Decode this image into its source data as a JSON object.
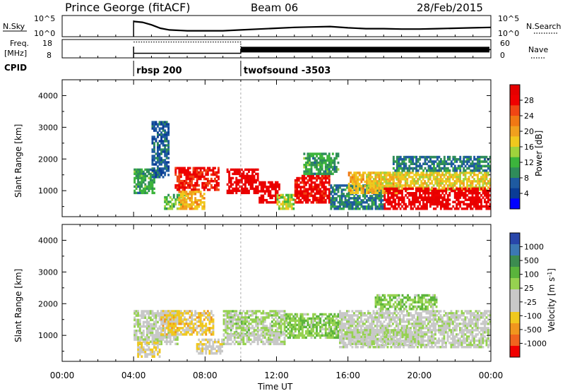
{
  "header": {
    "station": "Prince George (fitACF)",
    "beam": "Beam 06",
    "date": "28/Feb/2015"
  },
  "summary_panels": {
    "nsky_label": "N.Sky",
    "nsearch_label": "N.Search",
    "nsky_ticks": [
      "10^5",
      "10^0"
    ],
    "nsearch_ticks": [
      "10^5",
      "10^0"
    ],
    "freq_label_top": "Freq.",
    "freq_label_bottom": "[MHz]",
    "freq_ticks": [
      "18",
      "8"
    ],
    "nave_label": "Nave",
    "nave_ticks": [
      "60",
      "0"
    ],
    "cpid_label": "CPID",
    "cpid_segments": [
      {
        "start_hour": 4.0,
        "label": "rbsp 200"
      },
      {
        "start_hour": 10.0,
        "label": "twofsound -3503"
      }
    ]
  },
  "colors": {
    "power_scale": [
      "#0000ff",
      "#0a3c96",
      "#1e5aa0",
      "#2f8c5a",
      "#3cb43c",
      "#a0d23c",
      "#f0c81e",
      "#f0a01e",
      "#f07814",
      "#f04614",
      "#f00000",
      "#e60000"
    ],
    "velocity_scale": [
      "#2846aa",
      "#3c78b4",
      "#3c8c50",
      "#5ab43c",
      "#96d250",
      "#c8c8c8",
      "#c8c8c8",
      "#f0c81e",
      "#f0961e",
      "#f0641e",
      "#f00000"
    ]
  },
  "chart_data": [
    {
      "type": "heatmap",
      "title": "",
      "ylabel": "Slant Range [km]",
      "xlabel": "",
      "x_ticks": [
        "00:00",
        "04:00",
        "08:00",
        "12:00",
        "16:00",
        "20:00",
        "00:00"
      ],
      "xlim_hours": [
        0,
        24
      ],
      "y_ticks": [
        1000,
        2000,
        3000,
        4000
      ],
      "ylim_km": [
        180,
        4500
      ],
      "colorbar_label": "Power [dB]",
      "colorbar_ticks": [
        28,
        24,
        20,
        16,
        12,
        8,
        4
      ],
      "colorbar_range": [
        0,
        30
      ],
      "regions": [
        {
          "t0": 4.0,
          "t1": 5.2,
          "r0": 900,
          "r1": 1700,
          "value": 10
        },
        {
          "t0": 5.0,
          "t1": 6.0,
          "r0": 1400,
          "r1": 3200,
          "value": 6
        },
        {
          "t0": 5.7,
          "t1": 7.0,
          "r0": 400,
          "r1": 900,
          "value": 12
        },
        {
          "t0": 6.3,
          "t1": 8.8,
          "r0": 1000,
          "r1": 1750,
          "value": 26
        },
        {
          "t0": 6.5,
          "t1": 8.0,
          "r0": 400,
          "r1": 1000,
          "value": 18
        },
        {
          "t0": 9.2,
          "t1": 11.0,
          "r0": 900,
          "r1": 1700,
          "value": 28
        },
        {
          "t0": 11.0,
          "t1": 12.2,
          "r0": 600,
          "r1": 1300,
          "value": 28
        },
        {
          "t0": 12.0,
          "t1": 13.0,
          "r0": 400,
          "r1": 900,
          "value": 14
        },
        {
          "t0": 13.0,
          "t1": 15.0,
          "r0": 600,
          "r1": 1500,
          "value": 27
        },
        {
          "t0": 13.5,
          "t1": 15.5,
          "r0": 1500,
          "r1": 2200,
          "value": 10
        },
        {
          "t0": 15.0,
          "t1": 18.0,
          "r0": 400,
          "r1": 1200,
          "value": 8
        },
        {
          "t0": 16.0,
          "t1": 19.0,
          "r0": 900,
          "r1": 1600,
          "value": 18
        },
        {
          "t0": 17.0,
          "t1": 24.0,
          "r0": 1000,
          "r1": 1600,
          "value": 16
        },
        {
          "t0": 18.0,
          "t1": 24.0,
          "r0": 400,
          "r1": 1100,
          "value": 28
        },
        {
          "t0": 18.5,
          "t1": 24.0,
          "r0": 1600,
          "r1": 2100,
          "value": 8
        }
      ]
    },
    {
      "type": "heatmap",
      "title": "",
      "ylabel": "Slant Range [km]",
      "xlabel": "Time UT",
      "x_ticks": [
        "00:00",
        "04:00",
        "08:00",
        "12:00",
        "16:00",
        "20:00",
        "00:00"
      ],
      "xlim_hours": [
        0,
        24
      ],
      "y_ticks": [
        1000,
        2000,
        3000,
        4000
      ],
      "ylim_km": [
        180,
        4500
      ],
      "colorbar_label": "Velocity [m s^-1]",
      "colorbar_ticks": [
        1000,
        500,
        100,
        25,
        -25,
        -100,
        -500,
        -1000
      ],
      "colorbar_range": [
        -1250,
        1250
      ],
      "regions": [
        {
          "t0": 4.0,
          "t1": 6.5,
          "r0": 700,
          "r1": 1800,
          "value": 0
        },
        {
          "t0": 4.2,
          "t1": 5.5,
          "r0": 300,
          "r1": 800,
          "value": -300
        },
        {
          "t0": 5.5,
          "t1": 8.5,
          "r0": 1000,
          "r1": 1800,
          "value": -400
        },
        {
          "t0": 7.5,
          "t1": 9.0,
          "r0": 400,
          "r1": 900,
          "value": -200
        },
        {
          "t0": 9.0,
          "t1": 12.5,
          "r0": 1000,
          "r1": 1800,
          "value": 150
        },
        {
          "t0": 9.0,
          "t1": 12.5,
          "r0": 700,
          "r1": 1100,
          "value": 0
        },
        {
          "t0": 12.5,
          "t1": 15.5,
          "r0": 900,
          "r1": 1700,
          "value": 300
        },
        {
          "t0": 15.5,
          "t1": 24.0,
          "r0": 600,
          "r1": 1800,
          "value": 0
        },
        {
          "t0": 16.0,
          "t1": 20.0,
          "r0": 700,
          "r1": 1200,
          "value": 60
        },
        {
          "t0": 17.5,
          "t1": 21.0,
          "r0": 1800,
          "r1": 2300,
          "value": 300
        }
      ]
    }
  ],
  "nsky_series": [
    [
      4.0,
      3.6
    ],
    [
      4.5,
      3.4
    ],
    [
      5.0,
      2.8
    ],
    [
      5.5,
      2.0
    ],
    [
      6.0,
      1.6
    ],
    [
      7.0,
      1.4
    ],
    [
      8.0,
      1.4
    ],
    [
      9.0,
      1.4
    ],
    [
      10.0,
      1.6
    ],
    [
      11.0,
      1.8
    ],
    [
      12.0,
      2.0
    ],
    [
      13.0,
      2.2
    ],
    [
      14.0,
      2.3
    ],
    [
      15.0,
      2.4
    ],
    [
      16.0,
      2.1
    ],
    [
      17.0,
      1.9
    ],
    [
      18.0,
      1.9
    ],
    [
      19.0,
      1.8
    ],
    [
      20.0,
      1.8
    ],
    [
      21.0,
      1.9
    ],
    [
      22.0,
      2.0
    ],
    [
      23.0,
      2.1
    ],
    [
      24.0,
      2.2
    ]
  ],
  "freq_series": [
    [
      4.0,
      10.5
    ],
    [
      10.0,
      10.5
    ],
    [
      10.0,
      12.5
    ],
    [
      24.0,
      12.5
    ]
  ],
  "nave_series": [
    [
      4.0,
      52
    ],
    [
      10.0,
      52
    ],
    [
      10.0,
      26
    ],
    [
      24.0,
      26
    ]
  ]
}
